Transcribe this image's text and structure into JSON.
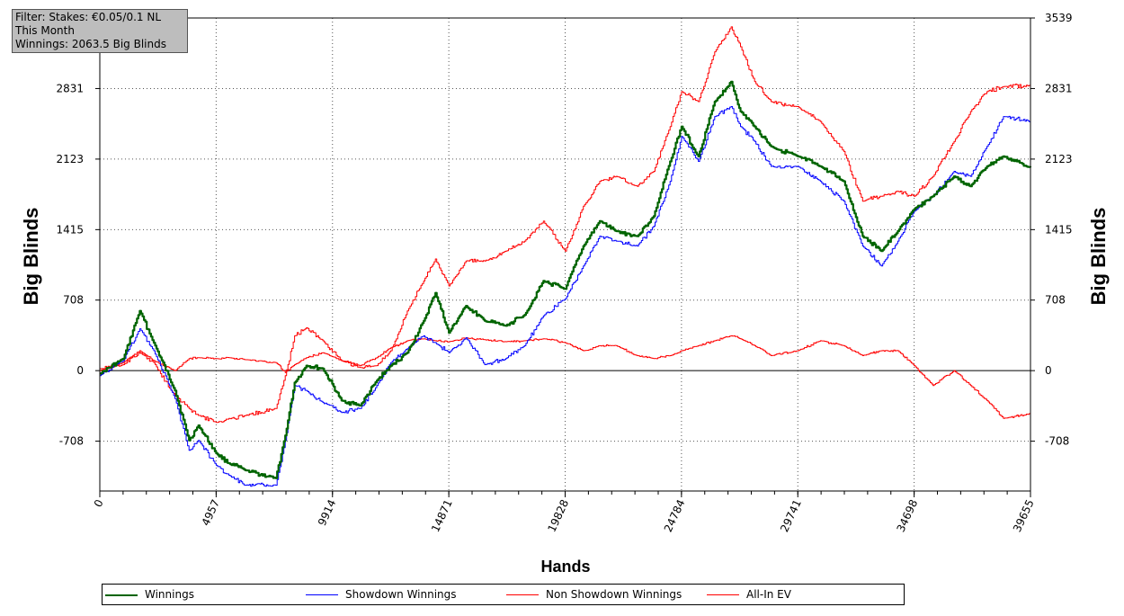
{
  "info": {
    "filter": "Filter: Stakes: €0.05/0.1 NL",
    "period": "This Month",
    "winnings": "Winnings: 2063.5 Big Blinds"
  },
  "chart_data": {
    "type": "line",
    "xlabel": "Hands",
    "ylabel": "Big Blinds",
    "xlim": [
      0,
      39655
    ],
    "ylim": [
      -1208,
      3539
    ],
    "x_ticks": [
      "0",
      "4957",
      "9914",
      "14871",
      "19828",
      "24784",
      "29741",
      "34698",
      "39655"
    ],
    "y_ticks": [
      "3539",
      "2831",
      "2123",
      "1415",
      "708",
      "0",
      "-708"
    ],
    "grid": true,
    "legend_position": "bottom",
    "series": [
      {
        "name": "Winnings",
        "color": "#006400",
        "x": [
          0,
          1000,
          1700,
          2300,
          3200,
          3800,
          4200,
          4957,
          5500,
          6200,
          7500,
          7900,
          8300,
          8800,
          9500,
          10300,
          11100,
          11800,
          12400,
          13100,
          13800,
          14300,
          14871,
          15600,
          16400,
          17300,
          18100,
          18900,
          19828,
          20600,
          21300,
          22000,
          22900,
          23600,
          24300,
          24784,
          25500,
          26200,
          26900,
          27300,
          27900,
          28600,
          29741,
          30700,
          31700,
          32500,
          33300,
          34000,
          34698,
          35500,
          36400,
          37100,
          37800,
          38500,
          39655
        ],
        "y": [
          -30,
          120,
          600,
          280,
          -200,
          -700,
          -550,
          -830,
          -930,
          -1000,
          -1080,
          -650,
          -120,
          50,
          20,
          -300,
          -350,
          -100,
          50,
          180,
          500,
          780,
          380,
          650,
          500,
          450,
          560,
          900,
          820,
          1250,
          1500,
          1400,
          1350,
          1550,
          2100,
          2450,
          2150,
          2700,
          2900,
          2600,
          2450,
          2250,
          2150,
          2050,
          1900,
          1350,
          1200,
          1400,
          1620,
          1750,
          1950,
          1850,
          2050,
          2150,
          2040
        ]
      },
      {
        "name": "Showdown Winnings",
        "color": "#0000ff",
        "x": [
          0,
          1000,
          1700,
          2300,
          3200,
          3800,
          4200,
          4957,
          5500,
          6200,
          7500,
          7900,
          8300,
          8800,
          9500,
          10300,
          11100,
          11800,
          12400,
          13100,
          13800,
          14300,
          14871,
          15600,
          16400,
          17300,
          18100,
          18900,
          19828,
          20600,
          21300,
          22000,
          22900,
          23600,
          24300,
          24784,
          25500,
          26200,
          26900,
          27300,
          27900,
          28600,
          29741,
          30700,
          31700,
          32500,
          33300,
          34000,
          34698,
          35500,
          36400,
          37100,
          37800,
          38500,
          39655
        ],
        "y": [
          -50,
          100,
          420,
          200,
          -280,
          -800,
          -700,
          -950,
          -1050,
          -1150,
          -1150,
          -700,
          -150,
          -200,
          -320,
          -420,
          -380,
          -150,
          80,
          220,
          350,
          280,
          180,
          330,
          60,
          120,
          250,
          550,
          720,
          1050,
          1350,
          1300,
          1250,
          1450,
          1900,
          2350,
          2100,
          2550,
          2650,
          2450,
          2300,
          2050,
          2050,
          1900,
          1700,
          1250,
          1050,
          1300,
          1600,
          1750,
          2000,
          1950,
          2250,
          2550,
          2500
        ]
      },
      {
        "name": "Non Showdown Winnings",
        "color": "#ff0000",
        "x": [
          0,
          1000,
          1700,
          2300,
          3200,
          3800,
          4200,
          4957,
          5500,
          6200,
          7500,
          7900,
          8300,
          8800,
          9500,
          10300,
          11100,
          11800,
          12400,
          13100,
          13800,
          14300,
          14871,
          15600,
          16400,
          17300,
          18100,
          18900,
          19828,
          20600,
          21300,
          22000,
          22900,
          23600,
          24300,
          24784,
          25500,
          26200,
          26900,
          27300,
          27900,
          28600,
          29741,
          30700,
          31700,
          32500,
          33300,
          34000,
          34698,
          35500,
          36400,
          37100,
          37800,
          38500,
          39655
        ],
        "y": [
          20,
          60,
          180,
          80,
          -250,
          -380,
          -450,
          -520,
          -480,
          -450,
          -380,
          -50,
          350,
          430,
          300,
          100,
          30,
          50,
          200,
          600,
          900,
          1120,
          850,
          1100,
          1100,
          1200,
          1300,
          1500,
          1200,
          1650,
          1900,
          1950,
          1850,
          2000,
          2450,
          2800,
          2700,
          3200,
          3450,
          3250,
          2900,
          2700,
          2650,
          2500,
          2200,
          1700,
          1750,
          1800,
          1750,
          1950,
          2300,
          2600,
          2800,
          2850,
          2860
        ]
      },
      {
        "name": "All-In EV",
        "color": "#ff0000",
        "x": [
          0,
          1000,
          1700,
          2300,
          3200,
          3800,
          4200,
          4957,
          5500,
          6200,
          7500,
          7900,
          8300,
          8800,
          9500,
          10300,
          11100,
          11800,
          12400,
          13100,
          13800,
          14300,
          14871,
          15600,
          16400,
          17300,
          18100,
          18900,
          19828,
          20600,
          21300,
          22000,
          22900,
          23600,
          24300,
          24784,
          25500,
          26200,
          26900,
          27300,
          27900,
          28600,
          29741,
          30700,
          31700,
          32500,
          33300,
          34000,
          34698,
          35500,
          36400,
          37100,
          37800,
          38500,
          39655
        ],
        "y": [
          0,
          80,
          200,
          100,
          0,
          120,
          130,
          120,
          130,
          110,
          80,
          -20,
          60,
          130,
          180,
          100,
          50,
          130,
          230,
          300,
          320,
          300,
          290,
          330,
          310,
          290,
          300,
          320,
          280,
          200,
          250,
          250,
          150,
          120,
          150,
          200,
          250,
          300,
          350,
          320,
          250,
          150,
          200,
          300,
          250,
          150,
          200,
          200,
          50,
          -150,
          0,
          -150,
          -300,
          -480,
          -430
        ]
      }
    ]
  },
  "legend": {
    "items": [
      {
        "label": "Winnings",
        "color": "#006400"
      },
      {
        "label": "Showdown Winnings",
        "color": "#0000ff"
      },
      {
        "label": "Non Showdown Winnings",
        "color": "#ff0000"
      },
      {
        "label": "All-In EV",
        "color": "#ff0000"
      }
    ]
  }
}
